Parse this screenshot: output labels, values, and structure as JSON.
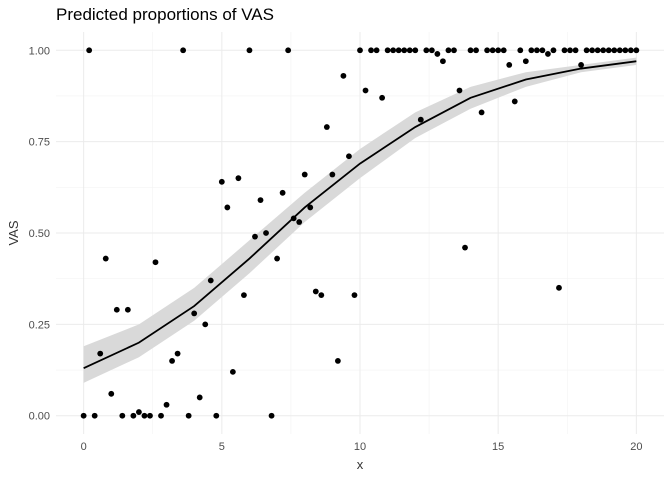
{
  "chart_data": {
    "type": "scatter",
    "title": "Predicted proportions of VAS",
    "xlabel": "x",
    "ylabel": "VAS",
    "xlim": [
      -1,
      21
    ],
    "ylim": [
      -0.05,
      1.05
    ],
    "x_ticks": [
      0,
      5,
      10,
      15,
      20
    ],
    "x_tick_labels": [
      "0",
      "5",
      "10",
      "15",
      "20"
    ],
    "y_ticks": [
      0,
      0.25,
      0.5,
      0.75,
      1
    ],
    "y_tick_labels": [
      "0.00",
      "0.25",
      "0.50",
      "0.75",
      "1.00"
    ],
    "grid": true,
    "legend": "none",
    "colors": {
      "points": "#000000",
      "line": "#000000",
      "ribbon": "#d9d9d9",
      "grid": "#ebebeb"
    },
    "points": [
      [
        0.0,
        0.0
      ],
      [
        0.2,
        1.0
      ],
      [
        0.4,
        0.0
      ],
      [
        0.6,
        0.17
      ],
      [
        0.8,
        0.43
      ],
      [
        1.0,
        0.06
      ],
      [
        1.2,
        0.29
      ],
      [
        1.4,
        0.0
      ],
      [
        1.6,
        0.29
      ],
      [
        1.8,
        0.0
      ],
      [
        2.0,
        0.01
      ],
      [
        2.2,
        0.0
      ],
      [
        2.4,
        0.0
      ],
      [
        2.6,
        0.42
      ],
      [
        2.8,
        0.0
      ],
      [
        3.0,
        0.03
      ],
      [
        3.2,
        0.15
      ],
      [
        3.4,
        0.17
      ],
      [
        3.6,
        1.0
      ],
      [
        3.8,
        0.0
      ],
      [
        4.0,
        0.28
      ],
      [
        4.2,
        0.05
      ],
      [
        4.4,
        0.25
      ],
      [
        4.6,
        0.37
      ],
      [
        4.8,
        0.0
      ],
      [
        5.0,
        0.64
      ],
      [
        5.2,
        0.57
      ],
      [
        5.4,
        0.12
      ],
      [
        5.6,
        0.65
      ],
      [
        5.8,
        0.33
      ],
      [
        6.0,
        1.0
      ],
      [
        6.2,
        0.49
      ],
      [
        6.4,
        0.59
      ],
      [
        6.6,
        0.5
      ],
      [
        6.8,
        0.0
      ],
      [
        7.0,
        0.43
      ],
      [
        7.2,
        0.61
      ],
      [
        7.4,
        1.0
      ],
      [
        7.6,
        0.54
      ],
      [
        7.8,
        0.53
      ],
      [
        8.0,
        0.66
      ],
      [
        8.2,
        0.57
      ],
      [
        8.4,
        0.34
      ],
      [
        8.6,
        0.33
      ],
      [
        8.8,
        0.79
      ],
      [
        9.0,
        0.66
      ],
      [
        9.2,
        0.15
      ],
      [
        9.4,
        0.93
      ],
      [
        9.6,
        0.71
      ],
      [
        9.8,
        0.33
      ],
      [
        10.0,
        1.0
      ],
      [
        10.2,
        0.89
      ],
      [
        10.4,
        1.0
      ],
      [
        10.6,
        1.0
      ],
      [
        10.8,
        0.87
      ],
      [
        11.0,
        1.0
      ],
      [
        11.2,
        1.0
      ],
      [
        11.4,
        1.0
      ],
      [
        11.6,
        1.0
      ],
      [
        11.8,
        1.0
      ],
      [
        12.0,
        1.0
      ],
      [
        12.2,
        0.81
      ],
      [
        12.4,
        1.0
      ],
      [
        12.6,
        1.0
      ],
      [
        12.8,
        0.99
      ],
      [
        13.0,
        0.97
      ],
      [
        13.2,
        1.0
      ],
      [
        13.4,
        1.0
      ],
      [
        13.6,
        0.89
      ],
      [
        13.8,
        0.46
      ],
      [
        14.0,
        1.0
      ],
      [
        14.2,
        1.0
      ],
      [
        14.4,
        0.83
      ],
      [
        14.6,
        1.0
      ],
      [
        14.8,
        1.0
      ],
      [
        15.0,
        1.0
      ],
      [
        15.2,
        1.0
      ],
      [
        15.4,
        0.96
      ],
      [
        15.6,
        0.86
      ],
      [
        15.8,
        1.0
      ],
      [
        16.0,
        0.97
      ],
      [
        16.2,
        1.0
      ],
      [
        16.4,
        1.0
      ],
      [
        16.6,
        1.0
      ],
      [
        16.8,
        0.99
      ],
      [
        17.0,
        1.0
      ],
      [
        17.2,
        0.35
      ],
      [
        17.4,
        1.0
      ],
      [
        17.6,
        1.0
      ],
      [
        17.8,
        1.0
      ],
      [
        18.0,
        0.96
      ],
      [
        18.2,
        1.0
      ],
      [
        18.4,
        1.0
      ],
      [
        18.6,
        1.0
      ],
      [
        18.8,
        1.0
      ],
      [
        19.0,
        1.0
      ],
      [
        19.2,
        1.0
      ],
      [
        19.4,
        1.0
      ],
      [
        19.6,
        1.0
      ],
      [
        19.8,
        1.0
      ],
      [
        20.0,
        1.0
      ]
    ],
    "fit": {
      "x": [
        0,
        2,
        4,
        6,
        8,
        10,
        12,
        14,
        16,
        18,
        20
      ],
      "y": [
        0.13,
        0.2,
        0.3,
        0.43,
        0.57,
        0.69,
        0.79,
        0.87,
        0.92,
        0.95,
        0.97
      ],
      "lower": [
        0.09,
        0.16,
        0.26,
        0.39,
        0.53,
        0.65,
        0.76,
        0.84,
        0.9,
        0.94,
        0.96
      ],
      "upper": [
        0.19,
        0.25,
        0.35,
        0.48,
        0.61,
        0.73,
        0.83,
        0.9,
        0.94,
        0.96,
        0.98
      ]
    }
  }
}
